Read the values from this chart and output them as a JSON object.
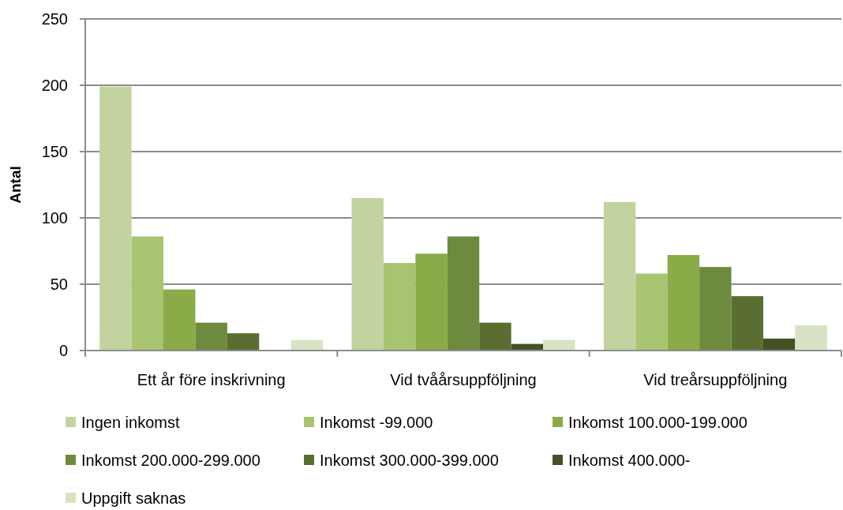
{
  "chart_data": {
    "type": "bar",
    "ylabel": "Antal",
    "categories": [
      "Ett år före inskrivning",
      "Vid tvåårsuppföljning",
      "Vid treårsuppföljning"
    ],
    "series": [
      {
        "name": "Ingen inkomst",
        "color": "#c3d3a0",
        "values": [
          199,
          115,
          112
        ]
      },
      {
        "name": "Inkomst -99.000",
        "color": "#a8c470",
        "values": [
          86,
          66,
          58
        ]
      },
      {
        "name": "Inkomst 100.000-199.000",
        "color": "#8aab47",
        "values": [
          46,
          73,
          72
        ]
      },
      {
        "name": "Inkomst 200.000-299.000",
        "color": "#6e8a3e",
        "values": [
          21,
          86,
          63
        ]
      },
      {
        "name": "Inkomst 300.000-399.000",
        "color": "#5a6e32",
        "values": [
          13,
          21,
          41
        ]
      },
      {
        "name": "Inkomst 400.000-",
        "color": "#435125",
        "values": [
          0,
          5,
          9
        ]
      },
      {
        "name": "Uppgift saknas",
        "color": "#d8e3c6",
        "values": [
          8,
          8,
          19
        ]
      }
    ],
    "ylim": [
      0,
      250
    ],
    "yticks": [
      0,
      50,
      100,
      150,
      200,
      250
    ],
    "grid": "y",
    "legend": "bottom"
  }
}
